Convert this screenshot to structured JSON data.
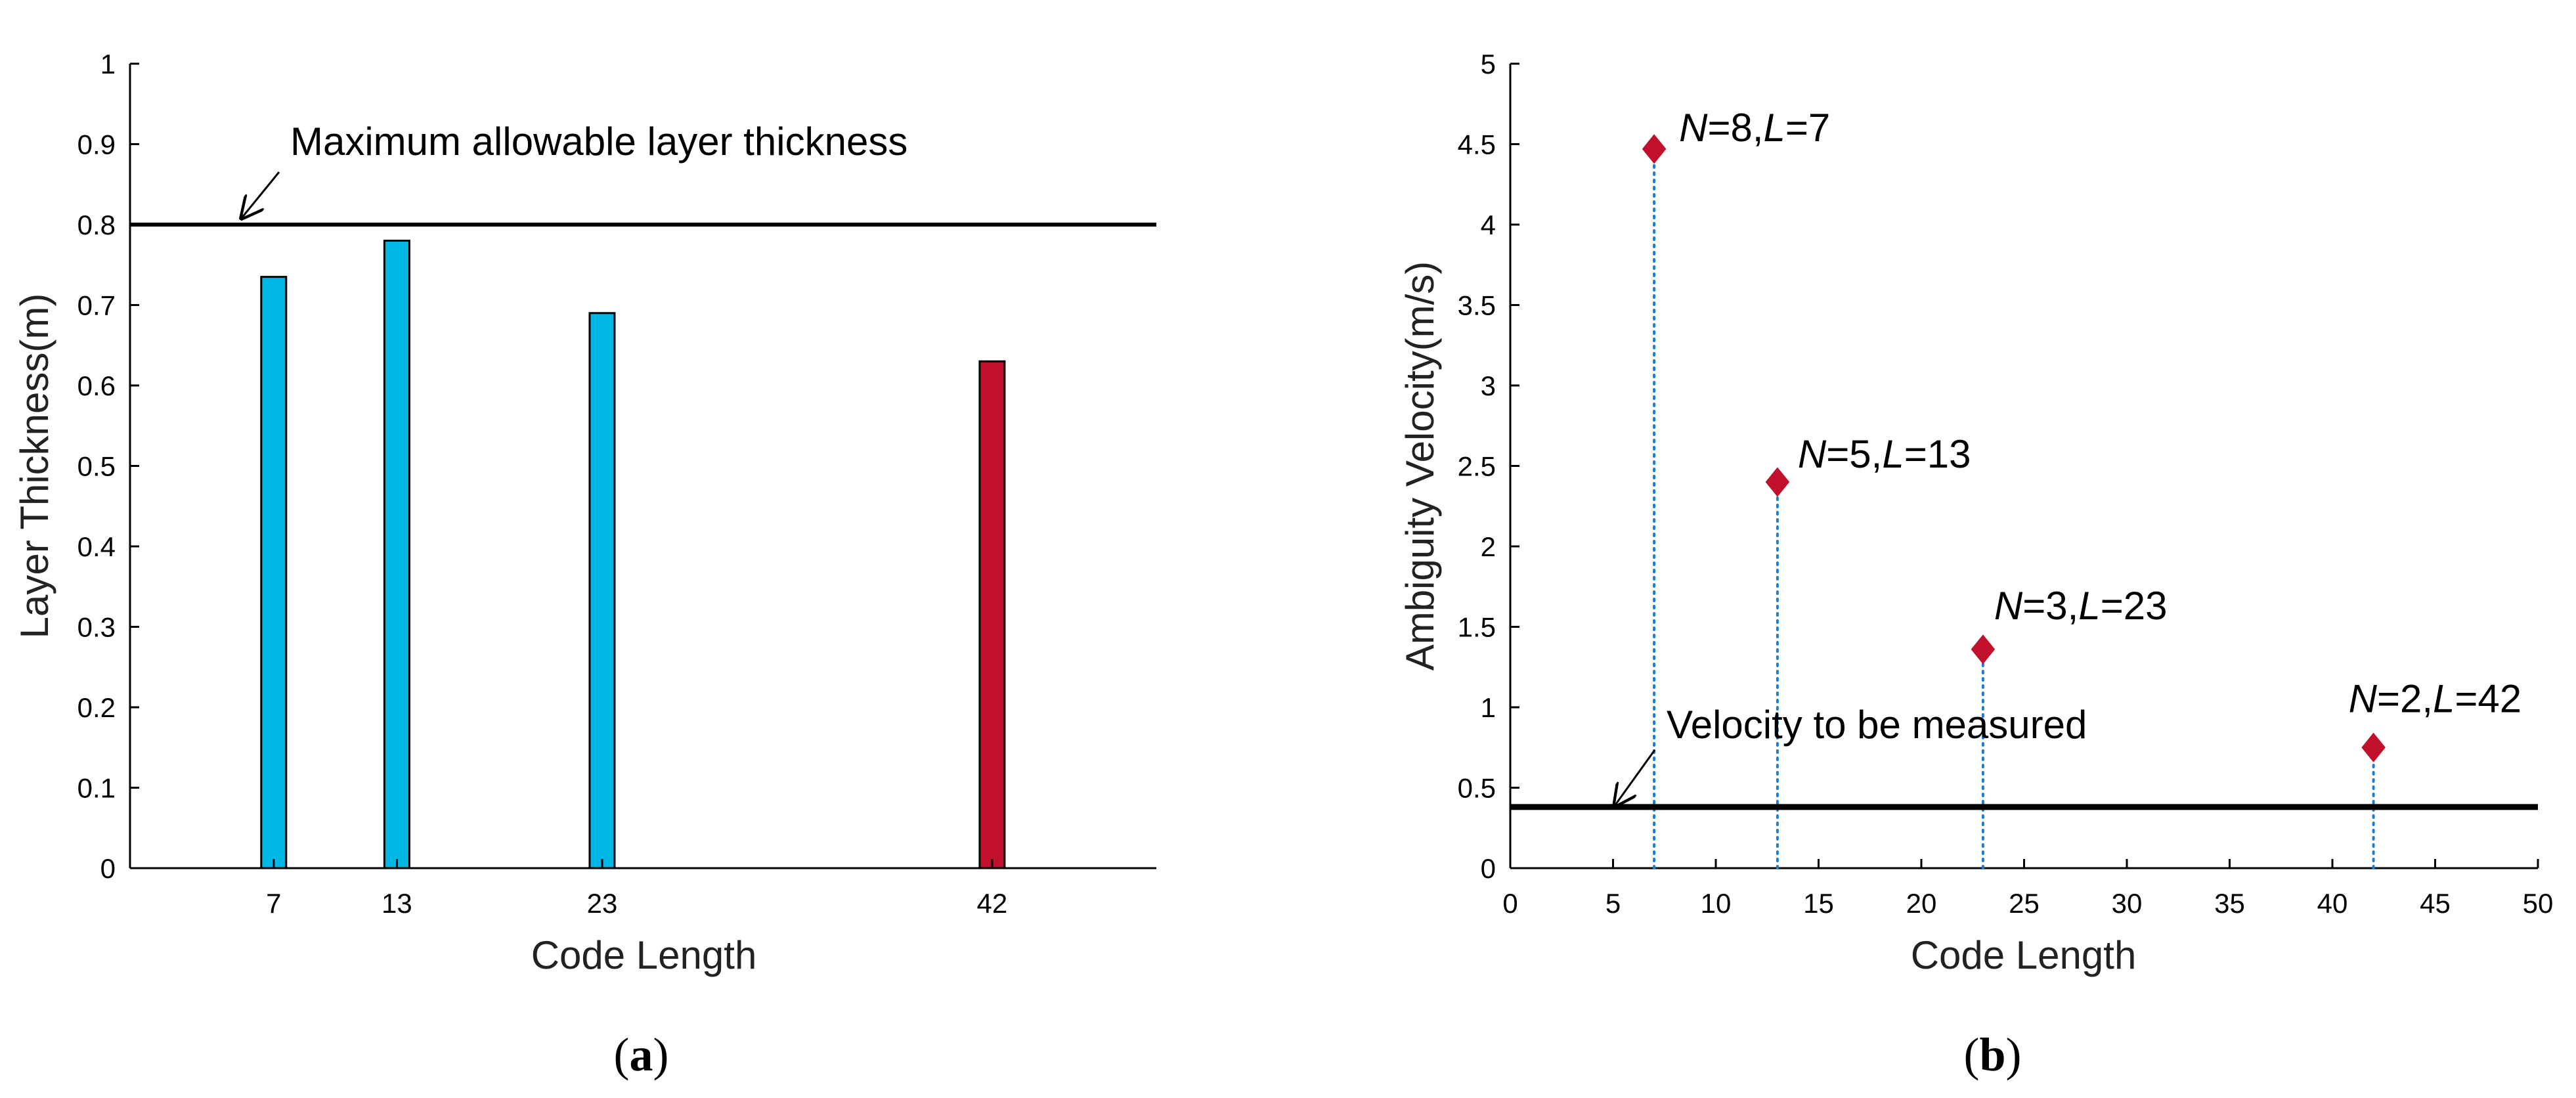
{
  "chart_data": [
    {
      "id": "a",
      "panel_label": "a",
      "type": "bar",
      "xlabel": "Code Length",
      "ylabel": "Layer Thickness(m)",
      "ylim": [
        0,
        1
      ],
      "yticks": [
        "0",
        "0.1",
        "0.2",
        "0.3",
        "0.4",
        "0.5",
        "0.6",
        "0.7",
        "0.8",
        "0.9",
        "1"
      ],
      "xlim": [
        0,
        50
      ],
      "categories": [
        "7",
        "13",
        "23",
        "42"
      ],
      "x": [
        7,
        13,
        23,
        42
      ],
      "values": [
        0.735,
        0.78,
        0.69,
        0.63
      ],
      "bar_colors": [
        "#00b8e8",
        "#00b8e8",
        "#00b8e8",
        "#c0102c"
      ],
      "reference_line": {
        "value": 0.8,
        "label": "Maximum allowable layer thickness"
      }
    },
    {
      "id": "b",
      "panel_label": "b",
      "type": "scatter",
      "xlabel": "Code Length",
      "ylabel": "Ambiguity Velocity(m/s)",
      "xlim": [
        0,
        50
      ],
      "ylim": [
        0,
        5
      ],
      "xticks": [
        "0",
        "5",
        "10",
        "15",
        "20",
        "25",
        "30",
        "35",
        "40",
        "45",
        "50"
      ],
      "yticks": [
        "0",
        "0.5",
        "1",
        "1.5",
        "2",
        "2.5",
        "3",
        "3.5",
        "4",
        "4.5",
        "5"
      ],
      "points": [
        {
          "x": 7,
          "y": 4.47,
          "N": "8",
          "L": "7"
        },
        {
          "x": 13,
          "y": 2.4,
          "N": "5",
          "L": "13"
        },
        {
          "x": 23,
          "y": 1.36,
          "N": "3",
          "L": "23"
        },
        {
          "x": 42,
          "y": 0.75,
          "N": "2",
          "L": "42"
        }
      ],
      "marker_color": "#c0102c",
      "stem_color": "#1a7fd0",
      "reference_line": {
        "value": 0.38,
        "label": "Velocity to be measured"
      }
    }
  ]
}
